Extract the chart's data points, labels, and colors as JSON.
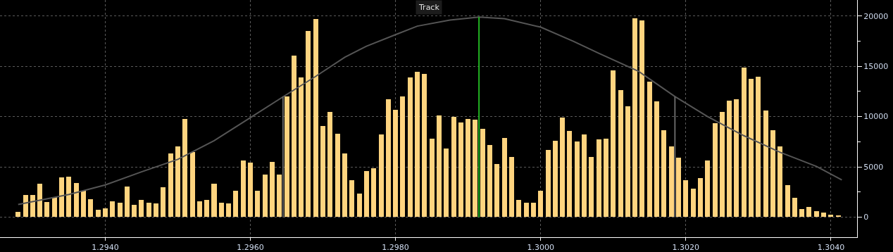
{
  "chart_data": {
    "type": "bar",
    "annotations": [
      "Track"
    ],
    "x": [
      1.2928,
      1.2929,
      1.293,
      1.2931,
      1.2932,
      1.2933,
      1.2934,
      1.2935,
      1.2936,
      1.2937,
      1.2938,
      1.2939,
      1.294,
      1.2941,
      1.2942,
      1.2943,
      1.2944,
      1.2945,
      1.2946,
      1.2947,
      1.2948,
      1.2949,
      1.295,
      1.2951,
      1.2952,
      1.2953,
      1.2954,
      1.2955,
      1.2956,
      1.2957,
      1.2958,
      1.2959,
      1.296,
      1.2961,
      1.2962,
      1.2963,
      1.2964,
      1.2965,
      1.2966,
      1.2967,
      1.2968,
      1.2969,
      1.297,
      1.2971,
      1.2972,
      1.2973,
      1.2974,
      1.2975,
      1.2976,
      1.2977,
      1.2978,
      1.2979,
      1.298,
      1.2981,
      1.2982,
      1.2983,
      1.2984,
      1.2985,
      1.2986,
      1.2987,
      1.2988,
      1.2989,
      1.299,
      1.2991,
      1.2992,
      1.2993,
      1.2994,
      1.2995,
      1.2996,
      1.2997,
      1.2998,
      1.2999,
      1.3,
      1.3001,
      1.3002,
      1.3003,
      1.3004,
      1.3005,
      1.3006,
      1.3007,
      1.3008,
      1.3009,
      1.301,
      1.3011,
      1.3012,
      1.3013,
      1.3014,
      1.3015,
      1.3016,
      1.3017,
      1.3018,
      1.3019,
      1.302,
      1.3021,
      1.3022,
      1.3023,
      1.3024,
      1.3025,
      1.3026,
      1.3027,
      1.3028,
      1.3029,
      1.303,
      1.3031,
      1.3032,
      1.3033,
      1.3034,
      1.3035,
      1.3036,
      1.3037,
      1.3038,
      1.3039,
      1.304,
      1.3041
    ],
    "series": [
      {
        "color": "#ffd47f",
        "values": [
          500,
          2200,
          2200,
          3300,
          1500,
          2000,
          3950,
          4000,
          3400,
          2600,
          1800,
          700,
          850,
          1600,
          1400,
          3050,
          1200,
          1700,
          1400,
          1350,
          3000,
          6300,
          7000,
          9750,
          6500,
          1550,
          1700,
          3300,
          1400,
          1350,
          2650,
          5600,
          5400,
          2650,
          4250,
          5500,
          4250,
          12000,
          16100,
          13900,
          18500,
          19700,
          9100,
          10450,
          8300,
          6300,
          3700,
          2350,
          4600,
          4850,
          8250,
          11750,
          10650,
          12000,
          13900,
          14450,
          14250,
          7800,
          10100,
          6800,
          10000,
          9450,
          9800,
          9700,
          8800,
          7150,
          5250,
          7900,
          6000,
          1700,
          1400,
          1450,
          2650,
          6700,
          7600,
          9900,
          8600,
          7550,
          8250,
          5950,
          7750,
          7800,
          14600,
          12650,
          11050,
          19800,
          19550,
          13450,
          11550,
          8650,
          7000,
          5900,
          3700,
          2850,
          3900,
          5600,
          9350,
          10450,
          11600,
          11750,
          14900,
          13750,
          14000,
          10600,
          8650,
          7050,
          3150,
          1900,
          780,
          1000,
          600,
          450,
          250,
          150
        ]
      },
      {
        "type": "line",
        "color": "#555555",
        "x": [
          1.2928,
          1.2935,
          1.294,
          1.2945,
          1.295,
          1.2955,
          1.296,
          1.2965,
          1.2969,
          1.2973,
          1.2976,
          1.298,
          1.2983,
          1.29875,
          1.29915,
          1.2995,
          1.3,
          1.30045,
          1.3008,
          1.30135,
          1.30185,
          1.3023,
          1.3028,
          1.3033,
          1.3038,
          1.30415
        ],
        "values": [
          1250,
          2250,
          3200,
          4500,
          5750,
          7600,
          9900,
          12200,
          14000,
          15900,
          17000,
          18150,
          19000,
          19600,
          19900,
          19750,
          18900,
          17500,
          16300,
          14500,
          12000,
          10000,
          8100,
          6450,
          5050,
          3700
        ]
      },
      {
        "type": "line",
        "color": "#666666",
        "x": [
          1.29645,
          1.29645
        ],
        "values": [
          0,
          12000
        ]
      },
      {
        "type": "line",
        "color": "#666666",
        "x": [
          1.30185,
          1.30185
        ],
        "values": [
          0,
          12000
        ]
      },
      {
        "type": "line",
        "color": "#22b422",
        "x": [
          1.29915,
          1.29915
        ],
        "values": [
          19900,
          0
        ]
      }
    ],
    "xlim": [
      1.29255,
      1.30436
    ],
    "xticks": [
      {
        "value": 1.294,
        "label": "1.2940"
      },
      {
        "value": 1.296,
        "label": "1.2960"
      },
      {
        "value": 1.298,
        "label": "1.2980"
      },
      {
        "value": 1.3,
        "label": "1.3000"
      },
      {
        "value": 1.302,
        "label": "1.3020"
      },
      {
        "value": 1.304,
        "label": "1.3040"
      }
    ],
    "ylim": [
      -2000,
      21600
    ],
    "yticks": [
      0,
      {
        "value": 2500,
        "label": null
      },
      5000,
      {
        "value": 7500,
        "label": null
      },
      10000,
      {
        "value": 12500,
        "label": null
      },
      15000,
      {
        "value": 17500,
        "label": null
      },
      20000
    ],
    "grid": true
  }
}
